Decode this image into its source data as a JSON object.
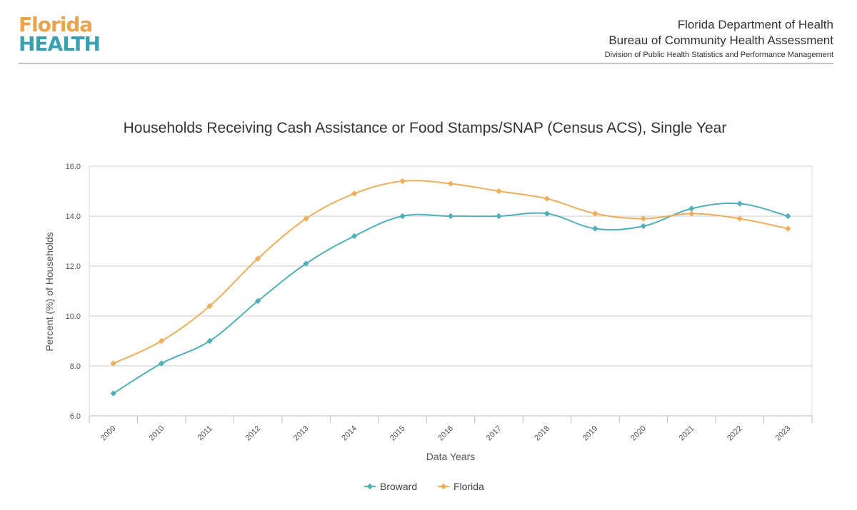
{
  "header": {
    "logo_top": "Florida",
    "logo_bottom": "HEALTH",
    "org_line1": "Florida Department of Health",
    "org_line2": "Bureau of Community Health Assessment",
    "org_line3": "Division of Public Health Statistics and Performance Management"
  },
  "colors": {
    "broward": "#4fb0b9",
    "florida": "#f0ae5a",
    "logo_orange": "#e8a34b",
    "logo_teal": "#3a9fae"
  },
  "chart_data": {
    "type": "line",
    "title": "Households Receiving Cash Assistance or Food Stamps/SNAP (Census ACS), Single Year",
    "xlabel": "Data Years",
    "ylabel": "Percent (%) of Households",
    "ylim": [
      6.0,
      16.0
    ],
    "yticks": [
      "6.0",
      "8.0",
      "10.0",
      "12.0",
      "14.0",
      "16.0"
    ],
    "categories": [
      "2009",
      "2010",
      "2011",
      "2012",
      "2013",
      "2014",
      "2015",
      "2016",
      "2017",
      "2018",
      "2019",
      "2020",
      "2021",
      "2022",
      "2023"
    ],
    "grid": true,
    "legend_position": "bottom-center",
    "series": [
      {
        "name": "Broward",
        "color": "#4fb0b9",
        "values": [
          6.9,
          8.1,
          9.0,
          10.6,
          12.1,
          13.2,
          14.0,
          14.0,
          14.0,
          14.1,
          13.5,
          13.6,
          14.3,
          14.5,
          14.0
        ]
      },
      {
        "name": "Florida",
        "color": "#f0ae5a",
        "values": [
          8.1,
          9.0,
          10.4,
          12.3,
          13.9,
          14.9,
          15.4,
          15.3,
          15.0,
          14.7,
          14.1,
          13.9,
          14.1,
          13.9,
          13.5
        ]
      }
    ]
  }
}
